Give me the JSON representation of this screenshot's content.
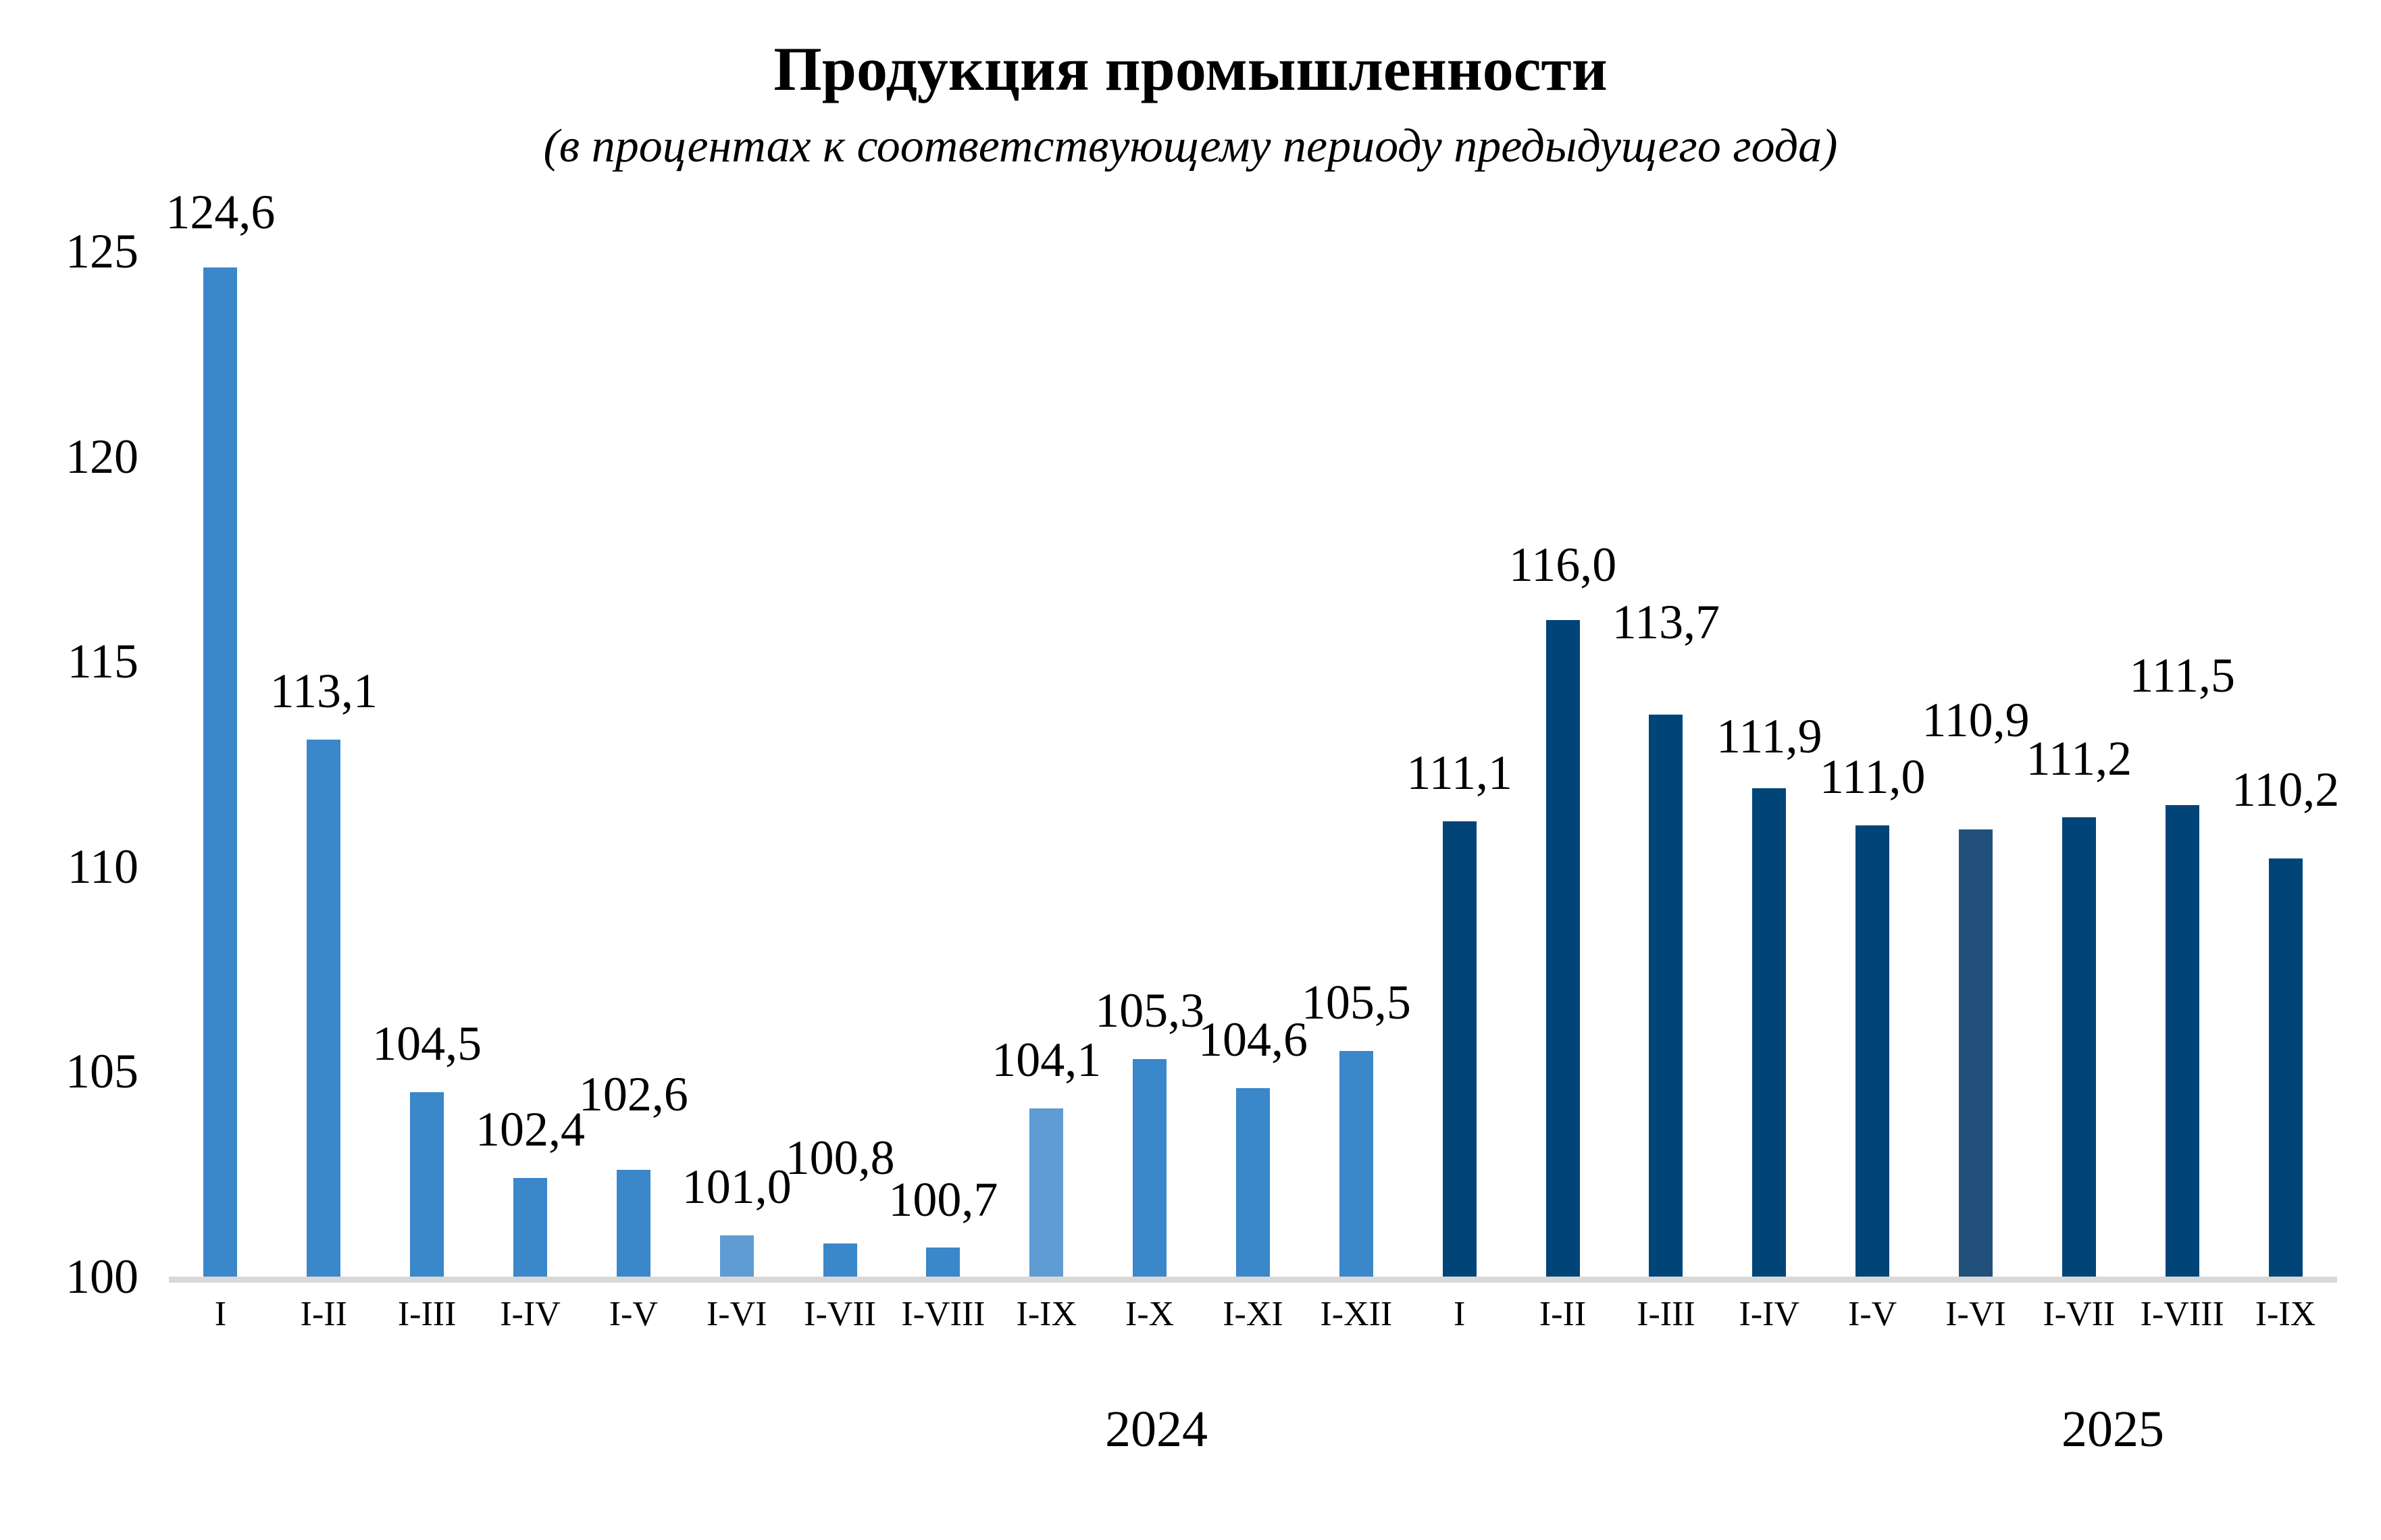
{
  "chart": {
    "title": "Продукция промышленности",
    "subtitle": "(в процентах к соответствующему периоду предыдущего года)"
  },
  "chart_data": {
    "type": "bar",
    "title": "Продукция промышленности",
    "subtitle": "(в процентах к соответствующему периоду предыдущего года)",
    "ylim": [
      100,
      125
    ],
    "yticks": [
      "100",
      "105",
      "110",
      "115",
      "120",
      "125"
    ],
    "grid": false,
    "legend": false,
    "value_label_format": "comma-decimal",
    "colors": {
      "bar_2024": "#3A87C9",
      "bar_2024_light": "#5E9CD3",
      "bar_2025": "#004478",
      "bar_2025_light": "#21507A",
      "axis_line": "#D9D9D9",
      "text": "#000000",
      "background": "#FFFFFF"
    },
    "groups": [
      {
        "year": "2024",
        "from_index": 0,
        "to_index": 11
      },
      {
        "year": "2025",
        "from_index": 12,
        "to_index": 20
      }
    ],
    "points": [
      {
        "category": "I",
        "group": "2024",
        "value": 124.6,
        "display": "124,6",
        "shade": "normal",
        "label_raise": 10
      },
      {
        "category": "I-II",
        "group": "2024",
        "value": 113.1,
        "display": "113,1",
        "shade": "normal",
        "label_raise": 0
      },
      {
        "category": "I-III",
        "group": "2024",
        "value": 104.5,
        "display": "104,5",
        "shade": "normal",
        "label_raise": 0
      },
      {
        "category": "I-IV",
        "group": "2024",
        "value": 102.4,
        "display": "102,4",
        "shade": "normal",
        "label_raise": 0
      },
      {
        "category": "I-V",
        "group": "2024",
        "value": 102.6,
        "display": "102,6",
        "shade": "normal",
        "label_raise": 40
      },
      {
        "category": "I-VI",
        "group": "2024",
        "value": 101.0,
        "display": "101,0",
        "shade": "light",
        "label_raise": 0
      },
      {
        "category": "I-VII",
        "group": "2024",
        "value": 100.8,
        "display": "100,8",
        "shade": "normal",
        "label_raise": 55
      },
      {
        "category": "I-VIII",
        "group": "2024",
        "value": 100.7,
        "display": "100,7",
        "shade": "normal",
        "label_raise": 0
      },
      {
        "category": "I-IX",
        "group": "2024",
        "value": 104.1,
        "display": "104,1",
        "shade": "light",
        "label_raise": 0
      },
      {
        "category": "I-X",
        "group": "2024",
        "value": 105.3,
        "display": "105,3",
        "shade": "normal",
        "label_raise": 0
      },
      {
        "category": "I-XI",
        "group": "2024",
        "value": 104.6,
        "display": "104,6",
        "shade": "normal",
        "label_raise": 0
      },
      {
        "category": "I-XII",
        "group": "2024",
        "value": 105.5,
        "display": "105,5",
        "shade": "normal",
        "label_raise": 0
      },
      {
        "category": "I",
        "group": "2025",
        "value": 111.1,
        "display": "111,1",
        "shade": "normal",
        "label_raise": 0
      },
      {
        "category": "I-II",
        "group": "2025",
        "value": 116.0,
        "display": "116,0",
        "shade": "normal",
        "label_raise": 10
      },
      {
        "category": "I-III",
        "group": "2025",
        "value": 113.7,
        "display": "113,7",
        "shade": "normal",
        "label_raise": 65
      },
      {
        "category": "I-IV",
        "group": "2025",
        "value": 111.9,
        "display": "111,9",
        "shade": "normal",
        "label_raise": 5
      },
      {
        "category": "I-V",
        "group": "2025",
        "value": 111.0,
        "display": "111,0",
        "shade": "normal",
        "label_raise": 0
      },
      {
        "category": "I-VI",
        "group": "2025",
        "value": 110.9,
        "display": "110,9",
        "shade": "light",
        "label_raise": 90
      },
      {
        "category": "I-VII",
        "group": "2025",
        "value": 111.2,
        "display": "111,2",
        "shade": "normal",
        "label_raise": 15
      },
      {
        "category": "I-VIII",
        "group": "2025",
        "value": 111.5,
        "display": "111,5",
        "shade": "normal",
        "label_raise": 120
      },
      {
        "category": "I-IX",
        "group": "2025",
        "value": 110.2,
        "display": "110,2",
        "shade": "normal",
        "label_raise": 30
      }
    ]
  }
}
